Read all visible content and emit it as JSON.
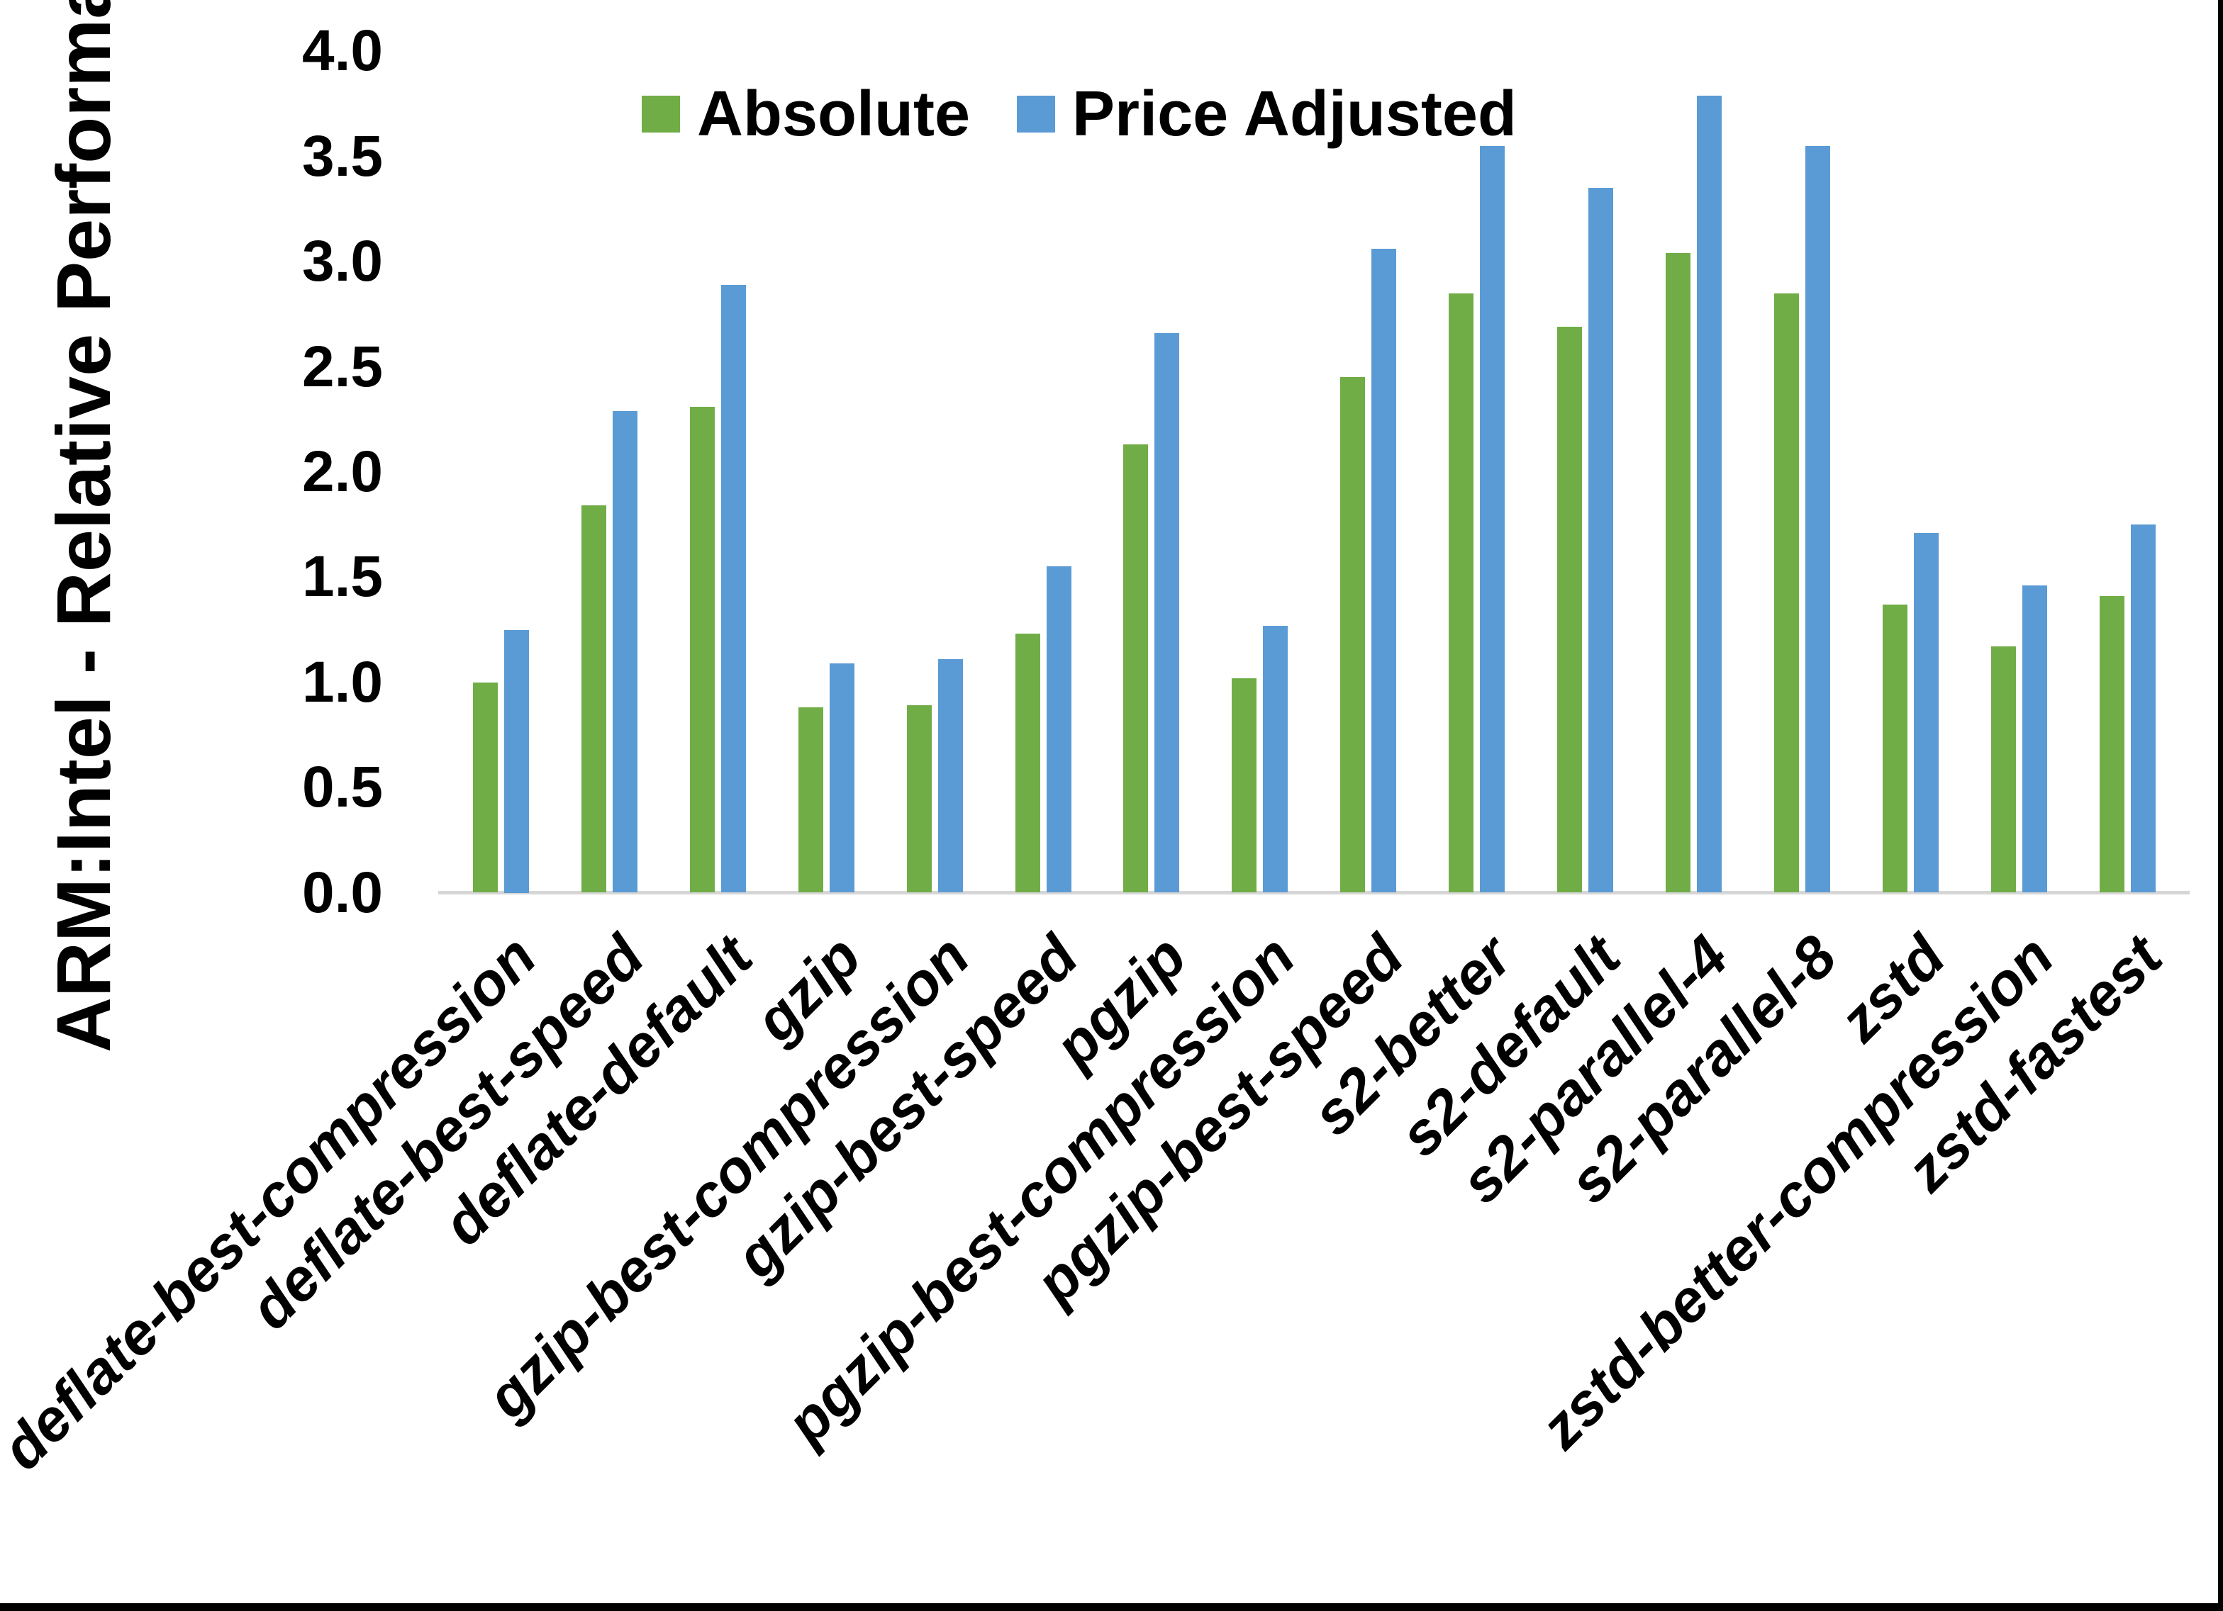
{
  "chart_data": {
    "type": "bar",
    "title": "",
    "ylabel": "ARM:Intel - Relative Performance",
    "xlabel": "",
    "ylim": [
      0.0,
      4.0
    ],
    "ytick_step": 0.5,
    "ytick_labels": [
      "0.0",
      "0.5",
      "1.0",
      "1.5",
      "2.0",
      "2.5",
      "3.0",
      "3.5",
      "4.0"
    ],
    "grid": false,
    "legend_position": "top-center-inside",
    "categories": [
      "deflate-best-compression",
      "deflate-best-speed",
      "deflate-default",
      "gzip",
      "gzip-best-compression",
      "gzip-best-speed",
      "pgzip",
      "pgzip-best-compression",
      "pgzip-best-speed",
      "s2-better",
      "s2-default",
      "s2-parallel-4",
      "s2-parallel-8",
      "zstd",
      "zstd-better-compression",
      "zstd-fastest"
    ],
    "series": [
      {
        "name": "Absolute",
        "color": "#70AD47",
        "values": [
          1.0,
          1.84,
          2.31,
          0.88,
          0.89,
          1.23,
          2.13,
          1.02,
          2.45,
          2.85,
          2.69,
          3.04,
          2.85,
          1.37,
          1.17,
          1.41
        ]
      },
      {
        "name": "Price Adjusted",
        "color": "#5B9BD5",
        "values": [
          1.25,
          2.29,
          2.89,
          1.09,
          1.11,
          1.55,
          2.66,
          1.27,
          3.06,
          3.55,
          3.35,
          3.79,
          3.55,
          1.71,
          1.46,
          1.75
        ]
      }
    ],
    "border_color": "#000000",
    "axis_line_color": "#D6D6D6"
  }
}
